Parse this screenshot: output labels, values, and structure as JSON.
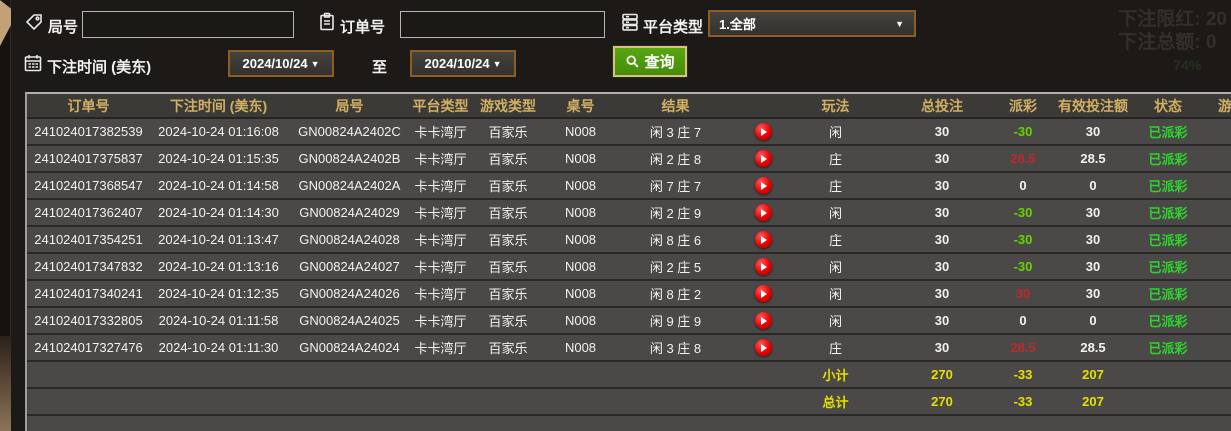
{
  "filters": {
    "round_label": "局号",
    "order_label": "订单号",
    "platform_label": "平台类型",
    "platform_value": "1.全部",
    "bet_time_label": "下注时间 (美东)",
    "date_from": "2024/10/24",
    "date_to": "2024/10/24",
    "to_label": "至",
    "search_label": "查询",
    "caret": "▼"
  },
  "ghost_background_text": {
    "line1": "下注限红: 20",
    "line2": "下注总额: 0",
    "line3": "74%"
  },
  "colors": {
    "header_text": "#d1af63",
    "payout_negative_green": "#63d400",
    "payout_positive_red": "#bf2a2a",
    "status_green": "#2dd42d",
    "totals_yellow": "#e5e000",
    "query_button_green": "#4e9b0d",
    "select_border_brown": "#8f5c22",
    "row_background": "#4b4947"
  },
  "table": {
    "headers": [
      "订单号",
      "下注时间 (美东)",
      "局号",
      "平台类型",
      "游戏类型",
      "桌号",
      "结果",
      "",
      "玩法",
      "总投注",
      "派彩",
      "有效投注额",
      "状态",
      "游"
    ],
    "rows": [
      {
        "order": "241024017382539",
        "time": "2024-10-24 01:16:08",
        "round": "GN00824A2402C",
        "platform": "卡卡湾厅",
        "game": "百家乐",
        "table": "N008",
        "result": "闲 3 庄 7",
        "bet": "闲",
        "total": "30",
        "payout": "-30",
        "pc": "neg",
        "valid": "30",
        "status": "已派彩"
      },
      {
        "order": "241024017375837",
        "time": "2024-10-24 01:15:35",
        "round": "GN00824A2402B",
        "platform": "卡卡湾厅",
        "game": "百家乐",
        "table": "N008",
        "result": "闲 2 庄 8",
        "bet": "庄",
        "total": "30",
        "payout": "28.5",
        "pc": "pos",
        "valid": "28.5",
        "status": "已派彩"
      },
      {
        "order": "241024017368547",
        "time": "2024-10-24 01:14:58",
        "round": "GN00824A2402A",
        "platform": "卡卡湾厅",
        "game": "百家乐",
        "table": "N008",
        "result": "闲 7 庄 7",
        "bet": "庄",
        "total": "30",
        "payout": "0",
        "pc": "zero",
        "valid": "0",
        "status": "已派彩"
      },
      {
        "order": "241024017362407",
        "time": "2024-10-24 01:14:30",
        "round": "GN00824A24029",
        "platform": "卡卡湾厅",
        "game": "百家乐",
        "table": "N008",
        "result": "闲 2 庄 9",
        "bet": "闲",
        "total": "30",
        "payout": "-30",
        "pc": "neg",
        "valid": "30",
        "status": "已派彩"
      },
      {
        "order": "241024017354251",
        "time": "2024-10-24 01:13:47",
        "round": "GN00824A24028",
        "platform": "卡卡湾厅",
        "game": "百家乐",
        "table": "N008",
        "result": "闲 8 庄 6",
        "bet": "庄",
        "total": "30",
        "payout": "-30",
        "pc": "neg",
        "valid": "30",
        "status": "已派彩"
      },
      {
        "order": "241024017347832",
        "time": "2024-10-24 01:13:16",
        "round": "GN00824A24027",
        "platform": "卡卡湾厅",
        "game": "百家乐",
        "table": "N008",
        "result": "闲 2 庄 5",
        "bet": "闲",
        "total": "30",
        "payout": "-30",
        "pc": "neg",
        "valid": "30",
        "status": "已派彩"
      },
      {
        "order": "241024017340241",
        "time": "2024-10-24 01:12:35",
        "round": "GN00824A24026",
        "platform": "卡卡湾厅",
        "game": "百家乐",
        "table": "N008",
        "result": "闲 8 庄 2",
        "bet": "闲",
        "total": "30",
        "payout": "30",
        "pc": "pos",
        "valid": "30",
        "status": "已派彩"
      },
      {
        "order": "241024017332805",
        "time": "2024-10-24 01:11:58",
        "round": "GN00824A24025",
        "platform": "卡卡湾厅",
        "game": "百家乐",
        "table": "N008",
        "result": "闲 9 庄 9",
        "bet": "闲",
        "total": "30",
        "payout": "0",
        "pc": "zero",
        "valid": "0",
        "status": "已派彩"
      },
      {
        "order": "241024017327476",
        "time": "2024-10-24 01:11:30",
        "round": "GN00824A24024",
        "platform": "卡卡湾厅",
        "game": "百家乐",
        "table": "N008",
        "result": "闲 3 庄 8",
        "bet": "庄",
        "total": "30",
        "payout": "28.5",
        "pc": "pos",
        "valid": "28.5",
        "status": "已派彩"
      }
    ],
    "subtotal": {
      "label": "小计",
      "total": "270",
      "payout": "-33",
      "valid": "207"
    },
    "total": {
      "label": "总计",
      "total": "270",
      "payout": "-33",
      "valid": "207"
    }
  }
}
